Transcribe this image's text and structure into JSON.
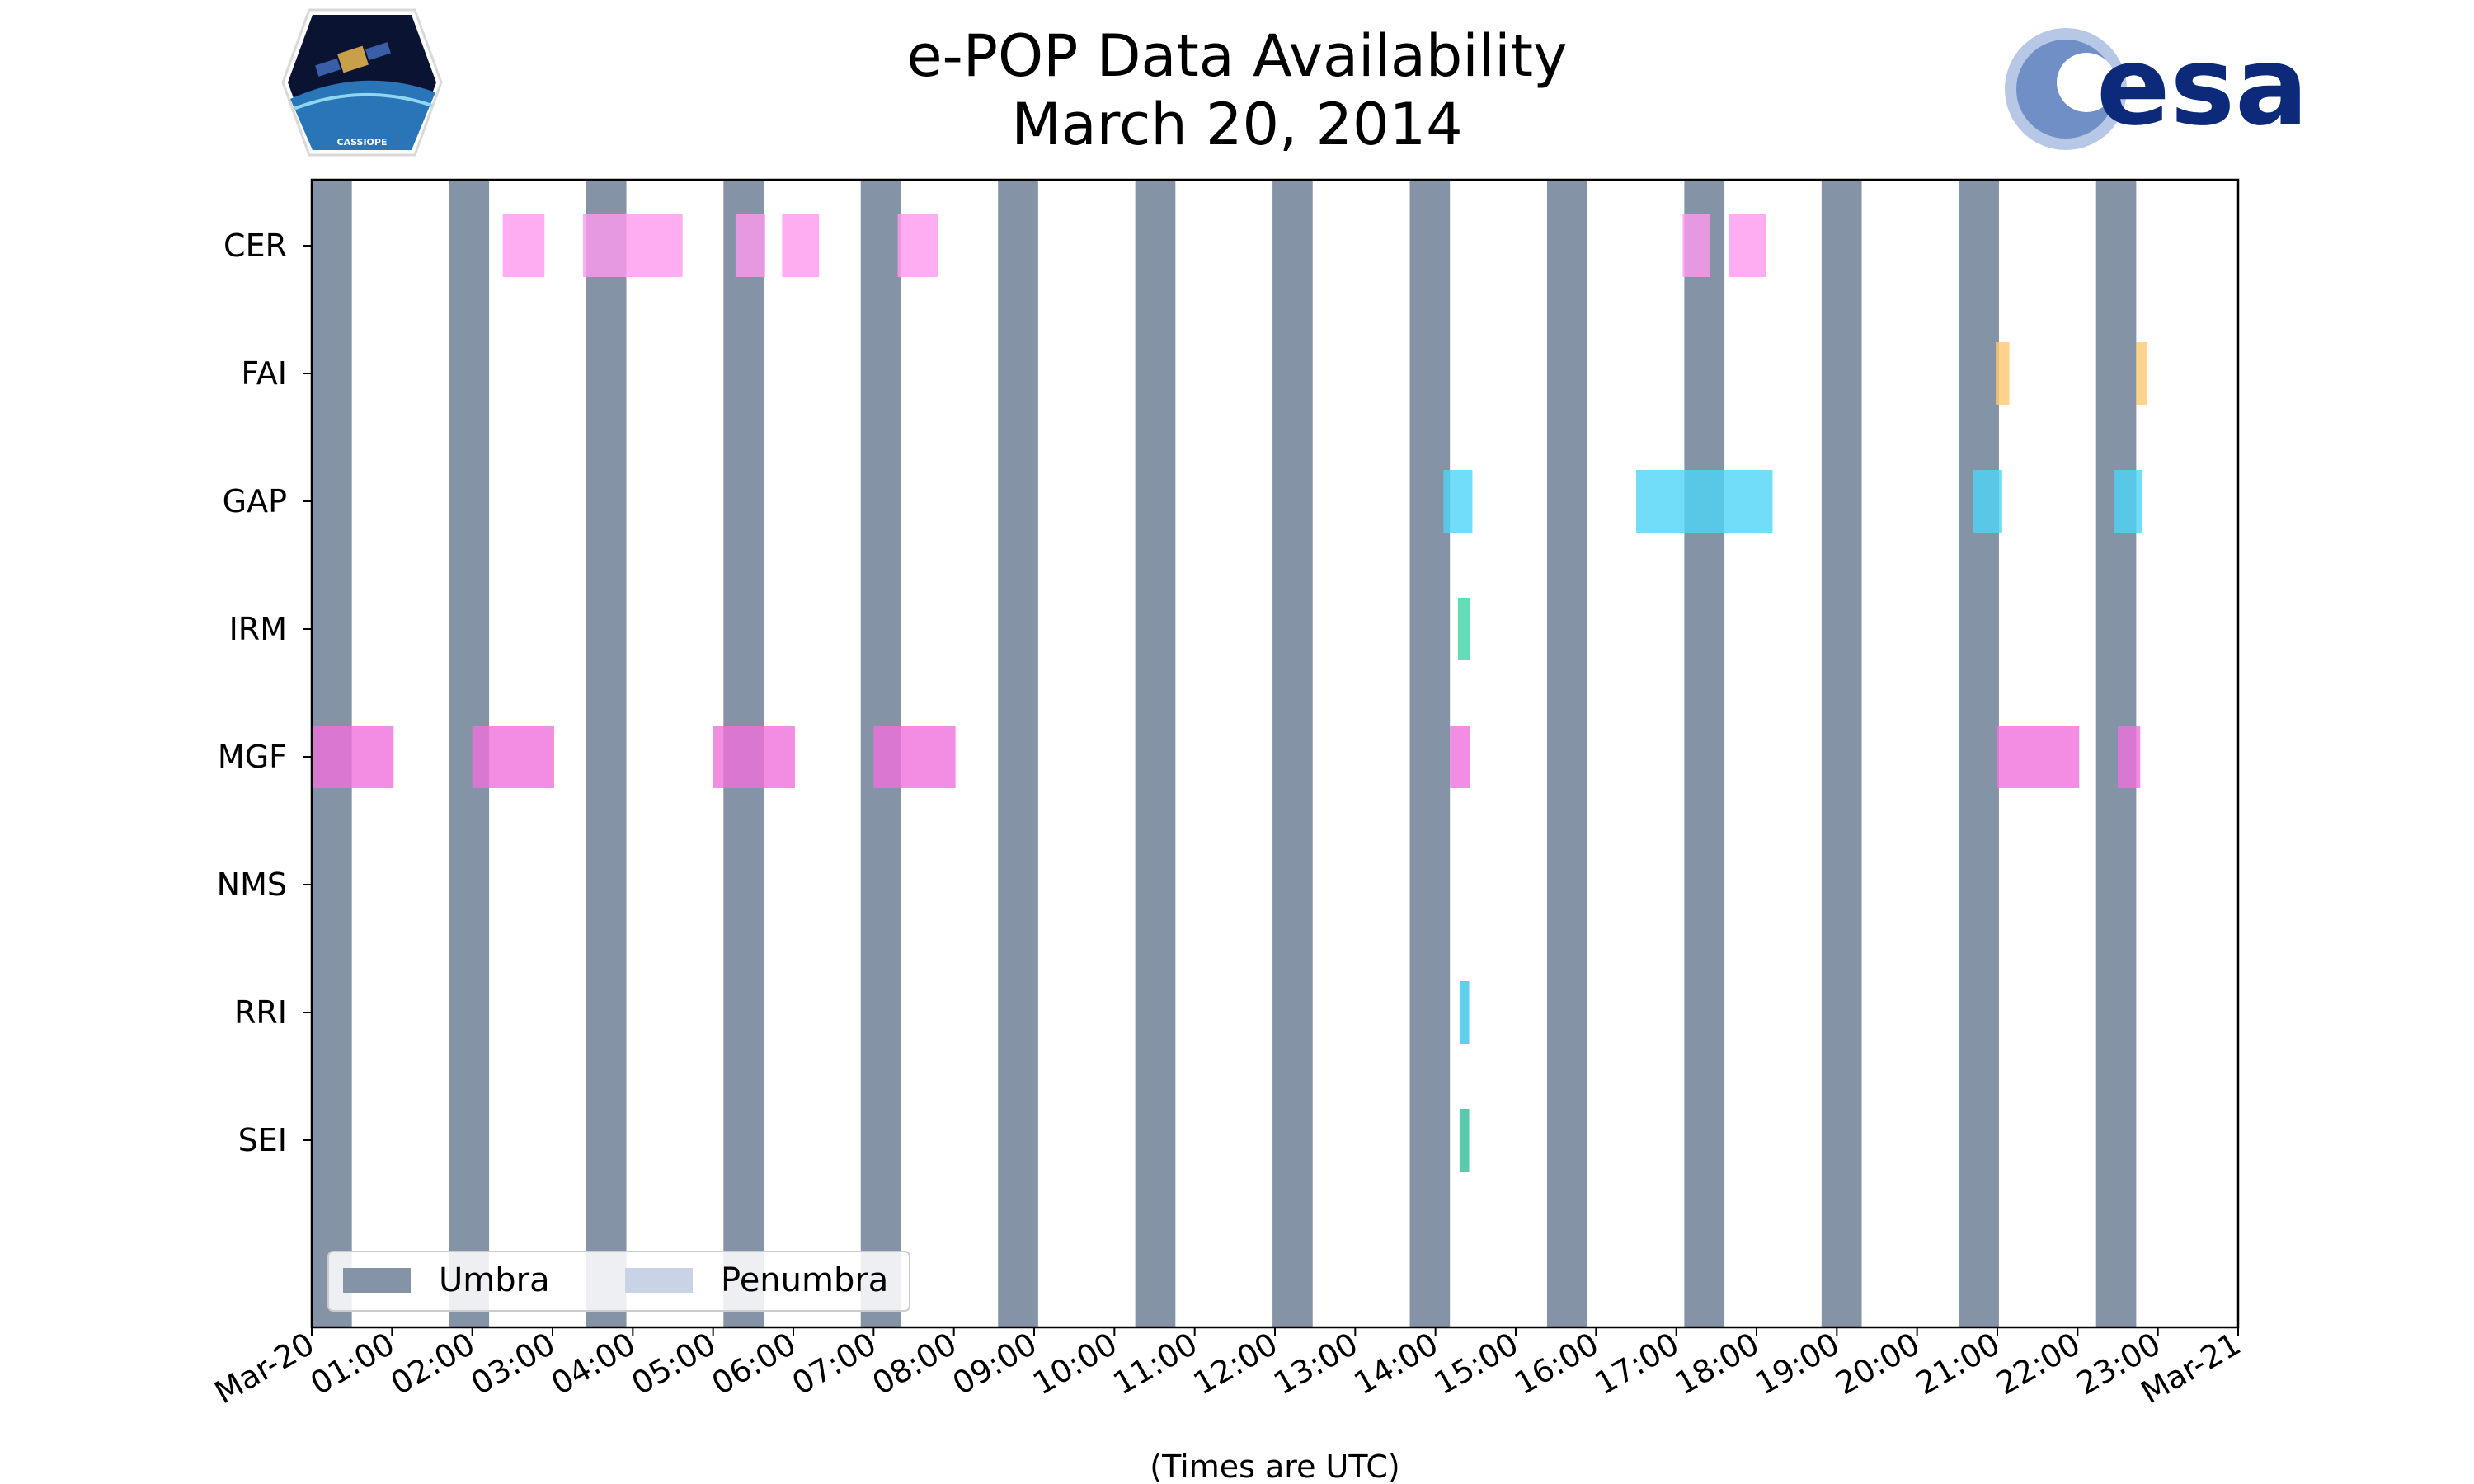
{
  "chart_data": {
    "type": "timeline",
    "title": "e-POP Data Availability",
    "subtitle": "March 20, 2014",
    "xlabel": "(Times are UTC)",
    "xlim": [
      0,
      24
    ],
    "x_tick_labels": [
      "Mar-20",
      "01:00",
      "02:00",
      "03:00",
      "04:00",
      "05:00",
      "06:00",
      "07:00",
      "08:00",
      "09:00",
      "10:00",
      "11:00",
      "12:00",
      "13:00",
      "14:00",
      "15:00",
      "16:00",
      "17:00",
      "18:00",
      "19:00",
      "20:00",
      "21:00",
      "22:00",
      "23:00",
      "Mar-21"
    ],
    "instruments": [
      "CER",
      "FAI",
      "GAP",
      "IRM",
      "MGF",
      "NMS",
      "RRI",
      "SEI"
    ],
    "umbra_color": "#8494a6",
    "penumbra_color": "#c8d4e6",
    "umbra_intervals": [
      [
        0.0,
        0.5
      ],
      [
        1.71,
        2.21
      ],
      [
        3.42,
        3.92
      ],
      [
        5.13,
        5.63
      ],
      [
        6.84,
        7.34
      ],
      [
        8.55,
        9.05
      ],
      [
        10.26,
        10.76
      ],
      [
        11.97,
        12.47
      ],
      [
        13.68,
        14.18
      ],
      [
        15.39,
        15.89
      ],
      [
        17.1,
        17.6
      ],
      [
        18.81,
        19.31
      ],
      [
        20.52,
        21.02
      ],
      [
        22.23,
        22.73
      ]
    ],
    "series": [
      {
        "name": "CER",
        "color": "#ff99f0",
        "intervals": [
          [
            2.38,
            2.9
          ],
          [
            3.38,
            4.62
          ],
          [
            5.28,
            5.65
          ],
          [
            5.86,
            6.32
          ],
          [
            7.3,
            7.8
          ],
          [
            17.08,
            17.42
          ],
          [
            17.65,
            18.12
          ]
        ]
      },
      {
        "name": "FAI",
        "color": "#ffc86e",
        "intervals": [
          [
            20.98,
            21.15
          ],
          [
            22.73,
            22.87
          ]
        ]
      },
      {
        "name": "GAP",
        "color": "#4ed4f6",
        "intervals": [
          [
            14.1,
            14.46
          ],
          [
            16.5,
            18.2
          ],
          [
            20.7,
            21.06
          ],
          [
            22.46,
            22.8
          ]
        ]
      },
      {
        "name": "IRM",
        "color": "#3cd4a6",
        "intervals": [
          [
            14.28,
            14.43
          ]
        ]
      },
      {
        "name": "MGF",
        "color": "#f070dc",
        "intervals": [
          [
            0.0,
            1.02
          ],
          [
            2.0,
            3.02
          ],
          [
            5.0,
            6.02
          ],
          [
            7.0,
            8.02
          ],
          [
            14.18,
            14.43
          ],
          [
            21.0,
            22.02
          ],
          [
            22.5,
            22.78
          ]
        ]
      },
      {
        "name": "NMS",
        "color": "#999999",
        "intervals": []
      },
      {
        "name": "RRI",
        "color": "#36c4ea",
        "intervals": [
          [
            14.3,
            14.42
          ]
        ]
      },
      {
        "name": "SEI",
        "color": "#32bc96",
        "intervals": [
          [
            14.3,
            14.42
          ]
        ]
      }
    ],
    "legend": {
      "placement": "lower-left",
      "entries": [
        {
          "label": "Umbra",
          "color": "#8494a6"
        },
        {
          "label": "Penumbra",
          "color": "#c8d4e6"
        }
      ]
    }
  },
  "logos": {
    "left_badge_text": "CASSIOPE",
    "right_logo_text": "esa"
  }
}
